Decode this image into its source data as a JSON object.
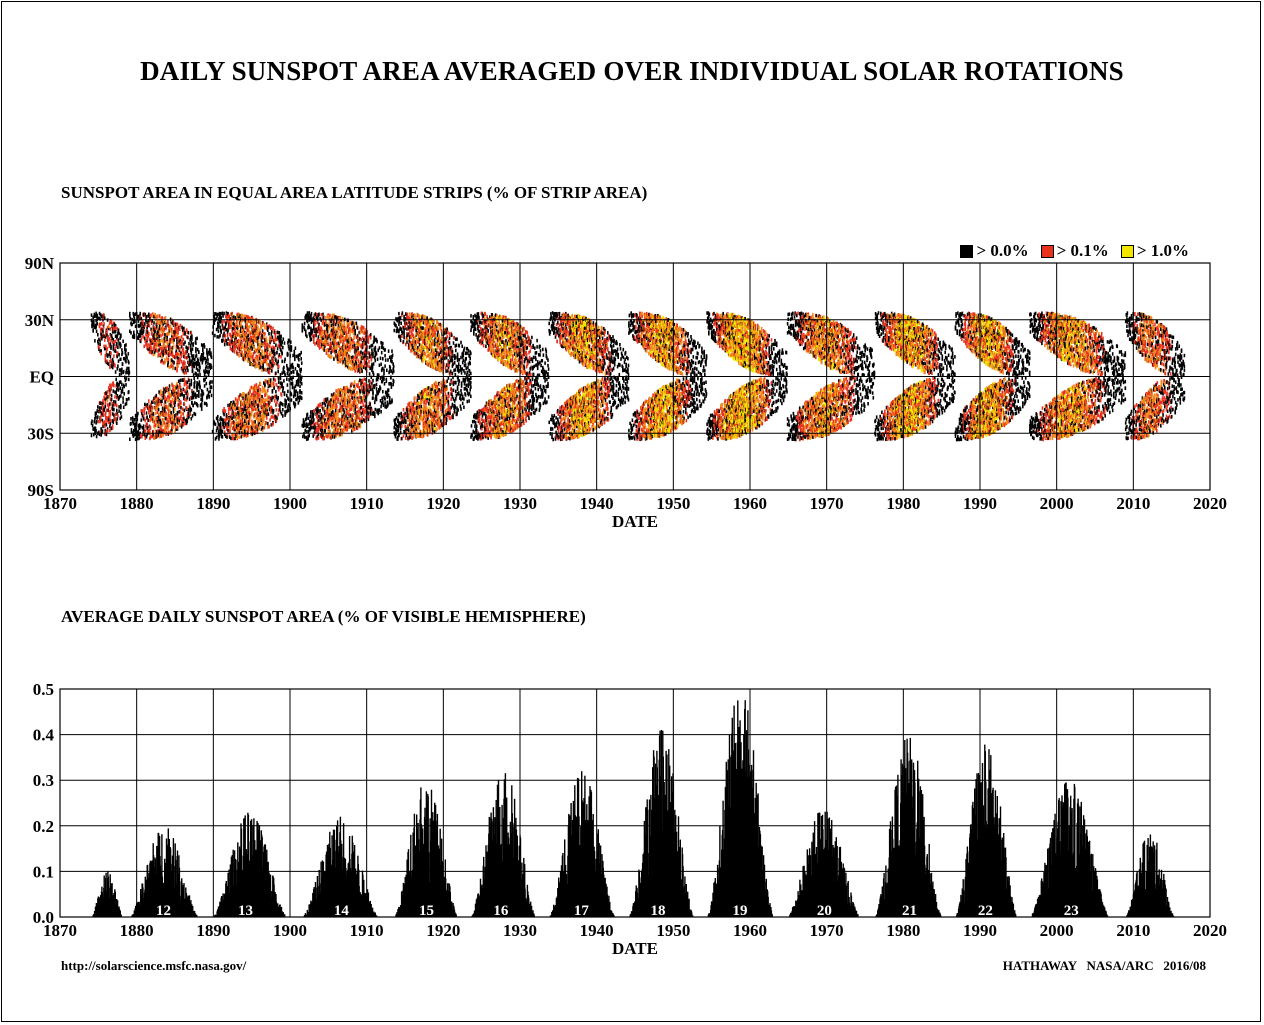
{
  "title": "DAILY SUNSPOT AREA AVERAGED OVER INDIVIDUAL SOLAR ROTATIONS",
  "footer": {
    "left": "http://solarscience.msfc.nasa.gov/",
    "right": "HATHAWAY   NASA/ARC   2016/08"
  },
  "legend": [
    {
      "label": "> 0.0%",
      "color": "#000000"
    },
    {
      "label": "> 0.1%",
      "color": "#e8321e"
    },
    {
      "label": "> 1.0%",
      "color": "#f2e600"
    }
  ],
  "chart_data": [
    {
      "type": "heatmap",
      "title": "SUNSPOT AREA IN EQUAL AREA LATITUDE STRIPS (% OF STRIP AREA)",
      "xlabel": "DATE",
      "xlim": [
        1870,
        2020
      ],
      "x_ticks": [
        "1870",
        "1880",
        "1890",
        "1900",
        "1910",
        "1920",
        "1930",
        "1940",
        "1950",
        "1960",
        "1970",
        "1980",
        "1990",
        "2000",
        "2010",
        "2020"
      ],
      "y_ticks": [
        "90N",
        "30N",
        "EQ",
        "30S",
        "90S"
      ],
      "grid": true,
      "legend_placement": "top-right",
      "cycles": [
        {
          "start": 1874.0,
          "end": 1879.0,
          "peak": 0.3
        },
        {
          "start": 1879.0,
          "end": 1889.8,
          "peak": 0.45
        },
        {
          "start": 1889.8,
          "end": 1901.5,
          "peak": 0.55
        },
        {
          "start": 1901.5,
          "end": 1913.5,
          "peak": 0.55
        },
        {
          "start": 1913.5,
          "end": 1923.5,
          "peak": 0.65
        },
        {
          "start": 1923.5,
          "end": 1933.7,
          "peak": 0.7
        },
        {
          "start": 1933.7,
          "end": 1944.1,
          "peak": 0.8
        },
        {
          "start": 1944.1,
          "end": 1954.3,
          "peak": 0.85
        },
        {
          "start": 1954.3,
          "end": 1964.8,
          "peak": 1.0
        },
        {
          "start": 1964.8,
          "end": 1976.2,
          "peak": 0.7
        },
        {
          "start": 1976.2,
          "end": 1986.7,
          "peak": 0.85
        },
        {
          "start": 1986.7,
          "end": 1996.4,
          "peak": 0.85
        },
        {
          "start": 1996.4,
          "end": 2008.9,
          "peak": 0.75
        },
        {
          "start": 2008.9,
          "end": 2016.6,
          "peak": 0.55
        }
      ]
    },
    {
      "type": "bar",
      "title": "AVERAGE DAILY SUNSPOT AREA (% OF VISIBLE HEMISPHERE)",
      "xlabel": "DATE",
      "xlim": [
        1870,
        2020
      ],
      "ylim": [
        0,
        0.5
      ],
      "x_ticks": [
        "1870",
        "1880",
        "1890",
        "1900",
        "1910",
        "1920",
        "1930",
        "1940",
        "1950",
        "1960",
        "1970",
        "1980",
        "1990",
        "2000",
        "2010",
        "2020"
      ],
      "y_ticks": [
        "0.0",
        "0.1",
        "0.2",
        "0.3",
        "0.4",
        "0.5"
      ],
      "grid": true,
      "cycle_labels": [
        {
          "label": "12",
          "x": 1883.5
        },
        {
          "label": "13",
          "x": 1894.2
        },
        {
          "label": "14",
          "x": 1906.7
        },
        {
          "label": "15",
          "x": 1917.8
        },
        {
          "label": "16",
          "x": 1927.5
        },
        {
          "label": "17",
          "x": 1938.0
        },
        {
          "label": "18",
          "x": 1948.0
        },
        {
          "label": "19",
          "x": 1958.7
        },
        {
          "label": "20",
          "x": 1969.7
        },
        {
          "label": "21",
          "x": 1980.8
        },
        {
          "label": "22",
          "x": 1990.7
        },
        {
          "label": "23",
          "x": 2001.9
        }
      ],
      "cycle_peaks": [
        {
          "start": 1874.0,
          "end": 1879.0,
          "peak": 0.1
        },
        {
          "start": 1879.0,
          "end": 1889.8,
          "peak": 0.2
        },
        {
          "start": 1889.8,
          "end": 1901.5,
          "peak": 0.23
        },
        {
          "start": 1901.5,
          "end": 1913.5,
          "peak": 0.22
        },
        {
          "start": 1913.5,
          "end": 1923.5,
          "peak": 0.3
        },
        {
          "start": 1923.5,
          "end": 1933.7,
          "peak": 0.33
        },
        {
          "start": 1933.7,
          "end": 1944.1,
          "peak": 0.32
        },
        {
          "start": 1944.1,
          "end": 1954.3,
          "peak": 0.41
        },
        {
          "start": 1954.3,
          "end": 1964.8,
          "peak": 0.5
        },
        {
          "start": 1964.8,
          "end": 1976.2,
          "peak": 0.24
        },
        {
          "start": 1976.2,
          "end": 1986.7,
          "peak": 0.4
        },
        {
          "start": 1986.7,
          "end": 1996.4,
          "peak": 0.38
        },
        {
          "start": 1996.4,
          "end": 2008.9,
          "peak": 0.3
        },
        {
          "start": 2008.9,
          "end": 2016.6,
          "peak": 0.19
        }
      ]
    }
  ]
}
